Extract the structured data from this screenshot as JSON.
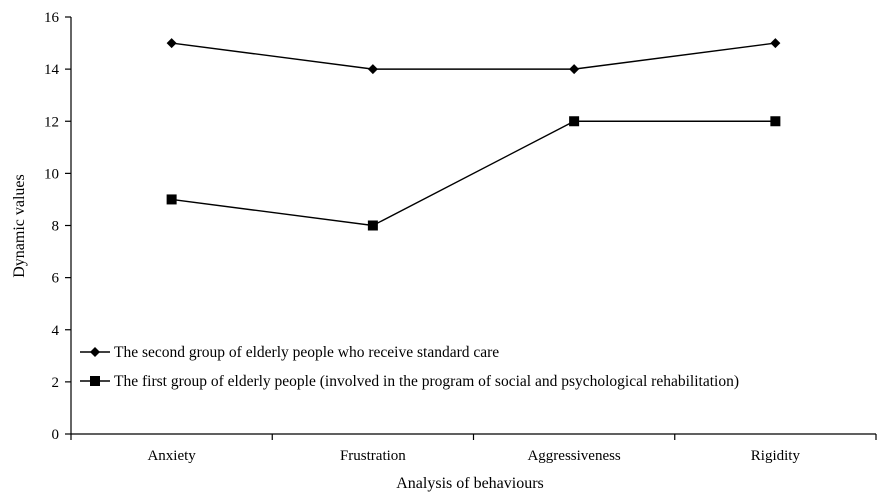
{
  "chart_data": {
    "type": "line",
    "title": "",
    "xlabel": "Analysis of behaviours",
    "ylabel": "Dynamic values",
    "categories": [
      "Anxiety",
      "Frustration",
      "Aggressiveness",
      "Rigidity"
    ],
    "ylim": [
      0,
      16
    ],
    "yticks": [
      "0",
      "2",
      "4",
      "6",
      "8",
      "10",
      "12",
      "14",
      "16"
    ],
    "grid": false,
    "legend_position": "bottom-left",
    "series": [
      {
        "name": "The second group of elderly people who receive standard care",
        "marker": "diamond",
        "color": "#000000",
        "values": [
          15,
          14,
          14,
          15
        ]
      },
      {
        "name": "The first group of elderly people (involved in the program of social and psychological rehabilitation)",
        "marker": "square",
        "color": "#000000",
        "values": [
          9,
          8,
          12,
          12
        ]
      }
    ]
  }
}
